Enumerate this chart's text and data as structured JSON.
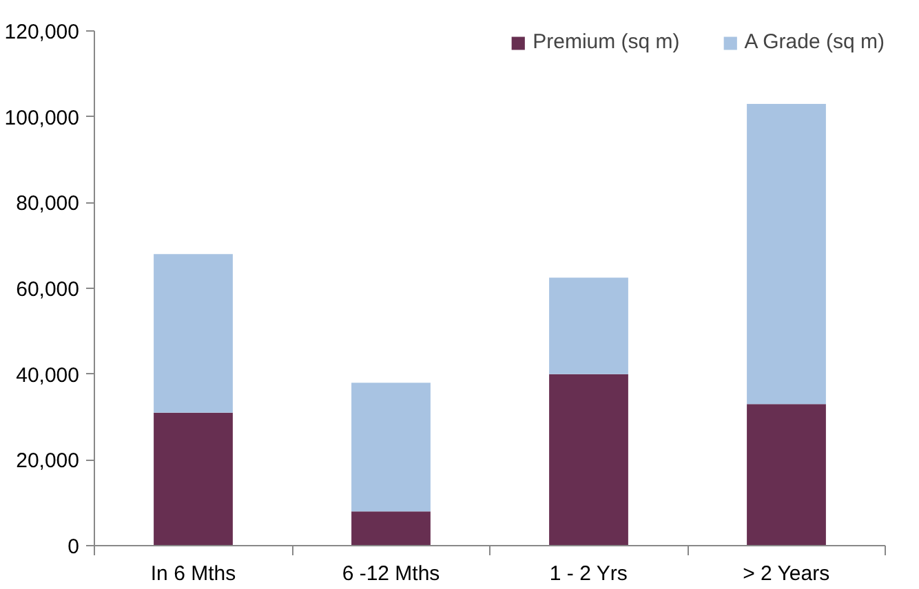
{
  "chart_data": {
    "type": "bar",
    "stacked": true,
    "categories": [
      "In 6 Mths",
      "6 -12 Mths",
      "1 - 2 Yrs",
      "> 2 Years"
    ],
    "series": [
      {
        "name": "Premium (sq m)",
        "color": "#672f51",
        "values": [
          31000,
          8000,
          40000,
          33000
        ]
      },
      {
        "name": "A Grade (sq m)",
        "color": "#a8c3e2",
        "values": [
          37000,
          30000,
          22500,
          70000
        ]
      }
    ],
    "ylim": [
      0,
      120000
    ],
    "yticks": [
      {
        "value": 0,
        "label": "0"
      },
      {
        "value": 20000,
        "label": "20,000"
      },
      {
        "value": 40000,
        "label": "40,000"
      },
      {
        "value": 60000,
        "label": "60,000"
      },
      {
        "value": 80000,
        "label": "80,000"
      },
      {
        "value": 100000,
        "label": "100,000"
      },
      {
        "value": 120000,
        "label": "120,000"
      }
    ],
    "grid": false,
    "legend": "top right"
  }
}
